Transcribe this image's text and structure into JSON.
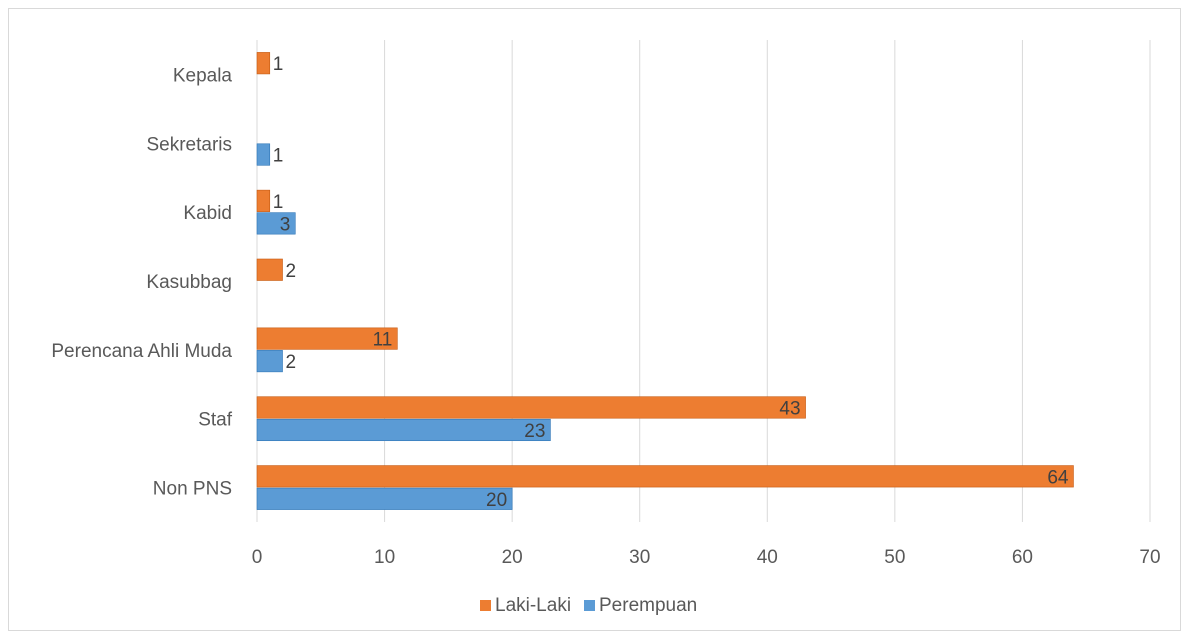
{
  "chart_data": {
    "type": "bar",
    "orientation": "horizontal",
    "categories": [
      "Non PNS",
      "Staf",
      "Perencana Ahli Muda",
      "Kasubbag",
      "Kabid",
      "Sekretaris",
      "Kepala"
    ],
    "series": [
      {
        "name": "Laki-Laki",
        "color": "#ed7d31",
        "values": [
          64,
          43,
          11,
          2,
          1,
          null,
          1
        ]
      },
      {
        "name": "Perempuan",
        "color": "#5b9bd5",
        "values": [
          20,
          23,
          2,
          null,
          3,
          1,
          null
        ]
      }
    ],
    "xlim": [
      0,
      70
    ],
    "xticks": [
      0,
      10,
      20,
      30,
      40,
      50,
      60,
      70
    ],
    "title": "",
    "xlabel": "",
    "ylabel": "",
    "grid": "vertical",
    "legend": "bottom",
    "data_labels": true
  }
}
